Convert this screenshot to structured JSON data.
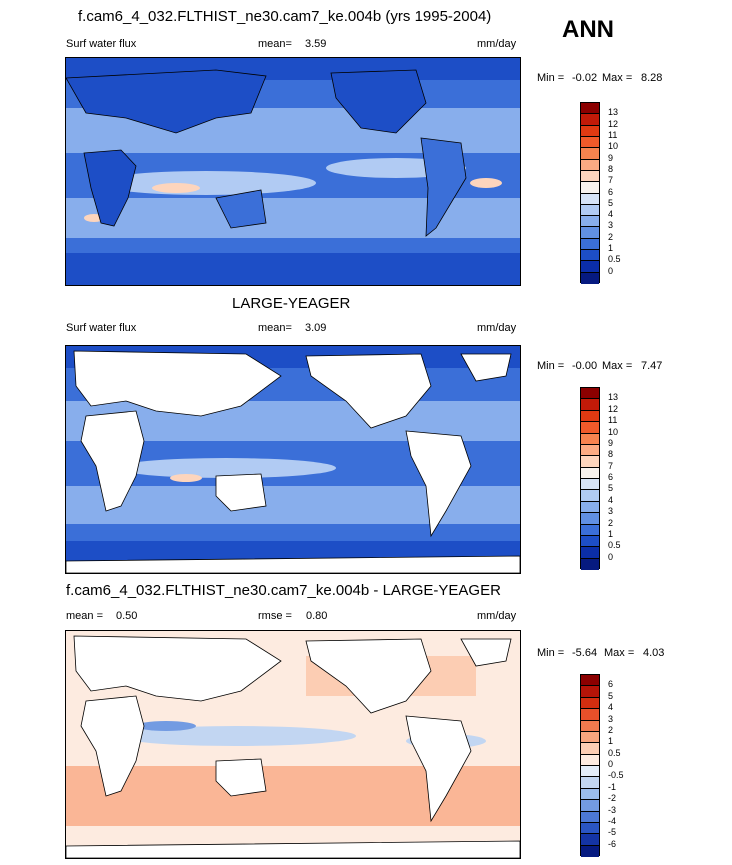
{
  "header": {
    "title": "f.cam6_4_032.FLTHIST_ne30.cam7_ke.004b (yrs 1995-2004)",
    "season": "ANN"
  },
  "panels": [
    {
      "variable": "Surf water flux",
      "stat_label": "mean=",
      "stat_value": "3.59",
      "units": "mm/day",
      "min_label": "Min =",
      "min_value": "-0.02",
      "max_label": "Max =",
      "max_value": "8.28",
      "colorbar_labels": [
        "13",
        "12",
        "11",
        "10",
        "9",
        "8",
        "7",
        "6",
        "5",
        "4",
        "3",
        "2",
        "1",
        "0.5",
        "0"
      ],
      "colorbar_colors": [
        "#8b0000",
        "#c21a08",
        "#e03a12",
        "#f05a2a",
        "#f7834f",
        "#fbab83",
        "#fdd5bd",
        "#f8f3ee",
        "#d7e4f7",
        "#b1cbf3",
        "#88aeec",
        "#6190e3",
        "#3b6fd8",
        "#1d4ec6",
        "#0b2ea8",
        "#061a80"
      ],
      "land_masked": false
    },
    {
      "title": "LARGE-YEAGER",
      "variable": "Surf water flux",
      "stat_label": "mean=",
      "stat_value": "3.09",
      "units": "mm/day",
      "min_label": "Min =",
      "min_value": "-0.00",
      "max_label": "Max =",
      "max_value": "7.47",
      "colorbar_labels": [
        "13",
        "12",
        "11",
        "10",
        "9",
        "8",
        "7",
        "6",
        "5",
        "4",
        "3",
        "2",
        "1",
        "0.5",
        "0"
      ],
      "colorbar_colors": [
        "#8b0000",
        "#c21a08",
        "#e03a12",
        "#f05a2a",
        "#f7834f",
        "#fbab83",
        "#fdd5bd",
        "#f8f3ee",
        "#d7e4f7",
        "#b1cbf3",
        "#88aeec",
        "#6190e3",
        "#3b6fd8",
        "#1d4ec6",
        "#0b2ea8",
        "#061a80"
      ],
      "land_masked": true
    },
    {
      "title": "f.cam6_4_032.FLTHIST_ne30.cam7_ke.004b - LARGE-YEAGER",
      "stat_label": "mean =",
      "stat_value": "0.50",
      "rmse_label": "rmse =",
      "rmse_value": "0.80",
      "units": "mm/day",
      "min_label": "Min =",
      "min_value": "-5.64",
      "max_label": "Max =",
      "max_value": "4.03",
      "colorbar_labels": [
        "6",
        "5",
        "4",
        "3",
        "2",
        "1",
        "0.5",
        "0",
        "-0.5",
        "-1",
        "-2",
        "-3",
        "-4",
        "-5",
        "-6"
      ],
      "colorbar_colors": [
        "#8b0000",
        "#b51408",
        "#d32e10",
        "#e8502a",
        "#f27a4f",
        "#f8a47d",
        "#fccdb3",
        "#fdebe0",
        "#e3edf9",
        "#c2d6f2",
        "#9bbcec",
        "#739be2",
        "#4c78d6",
        "#2a55c3",
        "#1434a5",
        "#061a80"
      ],
      "land_masked": true
    }
  ]
}
